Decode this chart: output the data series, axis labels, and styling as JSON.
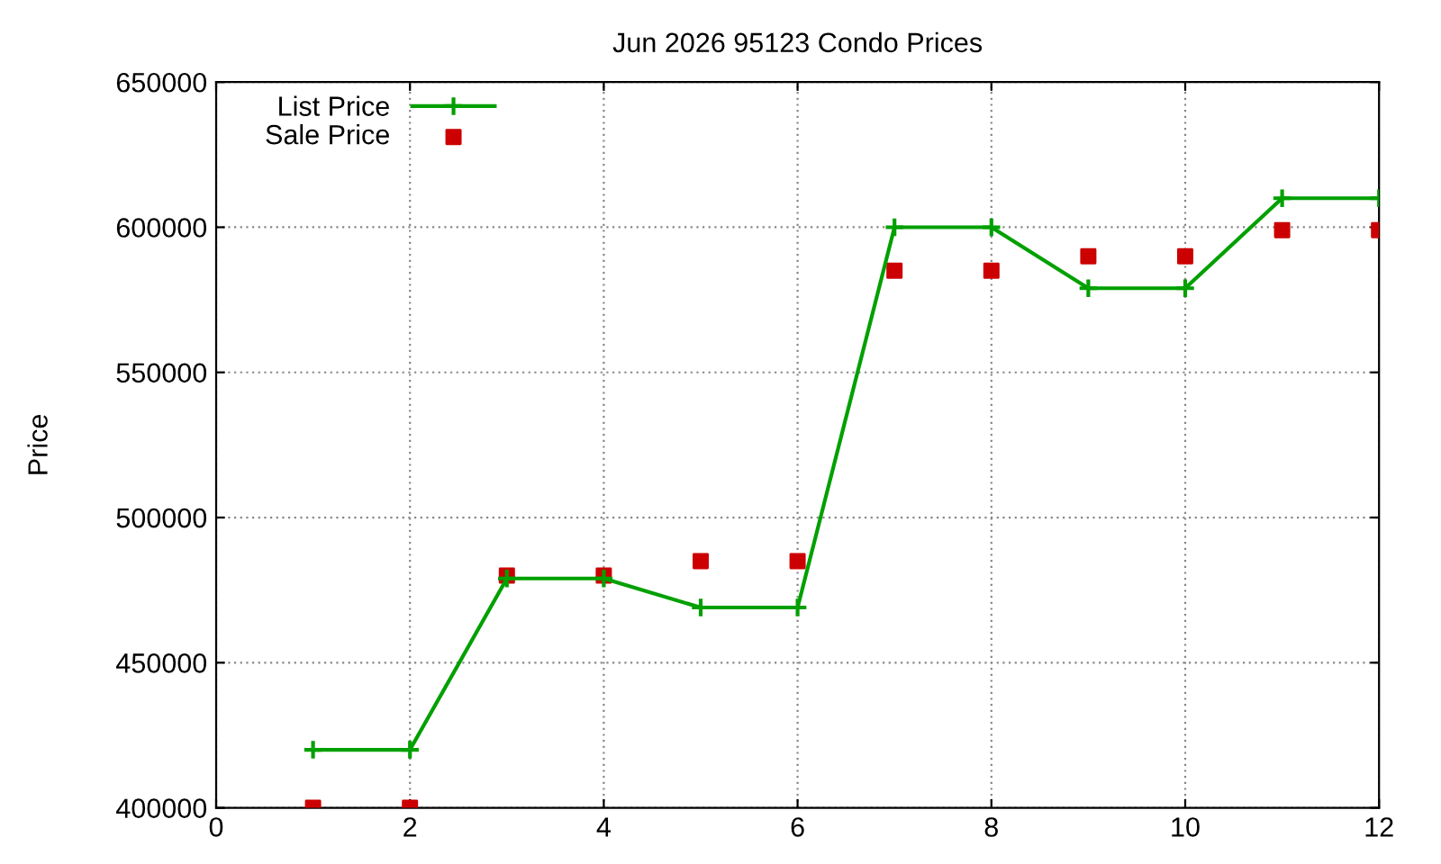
{
  "chart_data": {
    "type": "line",
    "title": "Jun 2026 95123 Condo Prices",
    "ylabel": "Price",
    "x": [
      1,
      2,
      3,
      4,
      5,
      6,
      7,
      8,
      9,
      10,
      11,
      12
    ],
    "series": [
      {
        "name": "List Price",
        "color": "#00a000",
        "marker": "cross",
        "values": [
          420000,
          420000,
          479000,
          479000,
          469000,
          469000,
          600000,
          600000,
          579000,
          579000,
          610000,
          610000
        ]
      },
      {
        "name": "Sale Price",
        "type": "scatter",
        "color": "#cc0000",
        "marker": "square",
        "values": [
          400000,
          400000,
          480000,
          480000,
          485000,
          485000,
          585000,
          585000,
          590000,
          590000,
          599000,
          599000
        ]
      }
    ],
    "xlim": [
      0,
      12
    ],
    "xticks": [
      0,
      2,
      4,
      6,
      8,
      10,
      12
    ],
    "ylim": [
      400000,
      650000
    ],
    "yticks": [
      400000,
      450000,
      500000,
      550000,
      600000,
      650000
    ],
    "grid": true,
    "legend": "top left"
  }
}
